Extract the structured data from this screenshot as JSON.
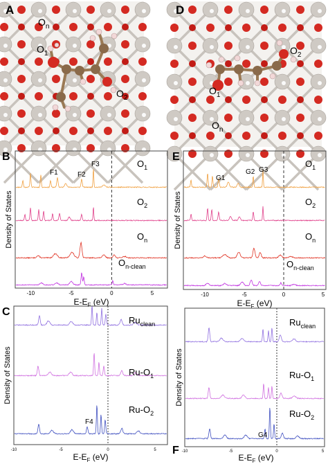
{
  "figure": {
    "panel_A": {
      "letter": "A",
      "site_labels": [
        {
          "label": "O",
          "sub": "n"
        },
        {
          "label": "O",
          "sub": "1"
        },
        {
          "label": "O",
          "sub": "2"
        }
      ],
      "colors": {
        "ru": "#cfcac4",
        "oxygen": "#d42a22",
        "carbon": "#8a6a4a",
        "hydrogen": "#f2d8d8"
      }
    },
    "panel_D": {
      "letter": "D",
      "site_labels": [
        {
          "label": "O",
          "sub": "2"
        },
        {
          "label": "O",
          "sub": "1"
        },
        {
          "label": "O",
          "sub": "n"
        }
      ]
    },
    "panel_B": {
      "letter": "B",
      "ylabel": "Density of States",
      "xlabel": {
        "main": "E-E",
        "sub": "F",
        "unit": " (eV)"
      },
      "xticks": [
        "-10",
        "-5",
        "0",
        "5"
      ],
      "peak_labels": [
        "F1",
        "F2",
        "F3"
      ],
      "traces": [
        {
          "label": "O",
          "sub": "1",
          "color": "#f0a040"
        },
        {
          "label": "O",
          "sub": "2",
          "color": "#e0408a"
        },
        {
          "label": "O",
          "sub": "n",
          "color": "#e03020"
        },
        {
          "label": "O",
          "sub": "n-clean",
          "color": "#c030e0"
        }
      ]
    },
    "panel_E": {
      "letter": "E",
      "ylabel": "Density of States",
      "xlabel": {
        "main": "E-E",
        "sub": "F",
        "unit": " (eV)"
      },
      "xticks": [
        "-10",
        "-5",
        "0",
        "5"
      ],
      "peak_labels": [
        "G1",
        "G2",
        "G3"
      ],
      "traces": [
        {
          "label": "O",
          "sub": "1",
          "color": "#f0a040"
        },
        {
          "label": "O",
          "sub": "2",
          "color": "#e0408a"
        },
        {
          "label": "O",
          "sub": "n",
          "color": "#e03020"
        },
        {
          "label": "O",
          "sub": "n-clean",
          "color": "#c030e0"
        }
      ]
    },
    "panel_C": {
      "letter": "C",
      "ylabel": "Density of States",
      "xlabel": {
        "main": "E-E",
        "sub": "F",
        "unit": " (eV)"
      },
      "xticks": [
        "-10",
        "-5",
        "0",
        "5"
      ],
      "peak_labels": [
        "F4"
      ],
      "traces": [
        {
          "label": "Ru",
          "sub": "clean",
          "color": "#9070e0"
        },
        {
          "label": "Ru-O",
          "sub": "1",
          "color": "#d070e0"
        },
        {
          "label": "Ru-O",
          "sub": "2",
          "color": "#4050c0"
        }
      ]
    },
    "panel_F": {
      "letter": "F",
      "ylabel": "Density of States",
      "xlabel": {
        "main": "E-E",
        "sub": "F",
        "unit": " (eV)"
      },
      "xticks": [
        "-10",
        "-5",
        "0",
        "5"
      ],
      "peak_labels": [
        "G4"
      ],
      "traces": [
        {
          "label": "Ru",
          "sub": "clean",
          "color": "#9070e0"
        },
        {
          "label": "Ru-O",
          "sub": "1",
          "color": "#d070e0"
        },
        {
          "label": "Ru-O",
          "sub": "2",
          "color": "#4050c0"
        }
      ]
    }
  }
}
